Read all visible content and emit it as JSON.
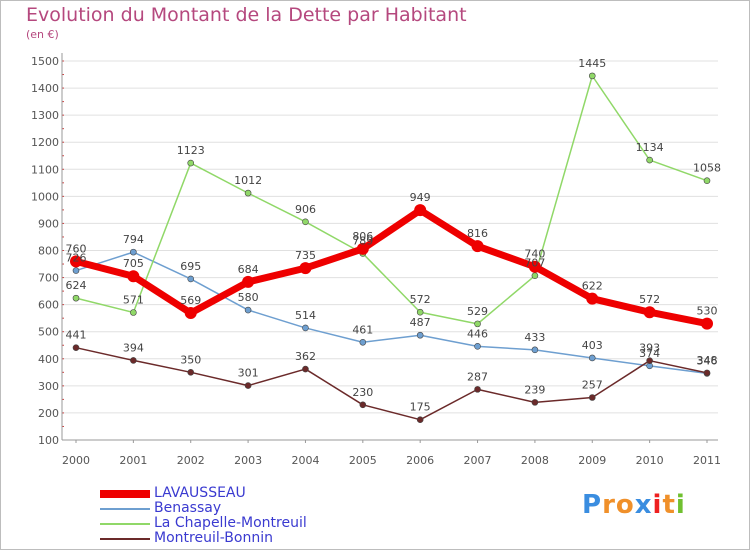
{
  "chart_data": {
    "type": "line",
    "title": "Evolution du Montant de la Dette par Habitant",
    "subtitle": "(en €)",
    "xlabel": "",
    "ylabel": "",
    "categories": [
      "2000",
      "2001",
      "2002",
      "2003",
      "2004",
      "2005",
      "2006",
      "2007",
      "2008",
      "2009",
      "2010",
      "2011"
    ],
    "ylim": [
      100,
      1500
    ],
    "yticks": [
      "100",
      "200",
      "300",
      "400",
      "500",
      "600",
      "700",
      "800",
      "900",
      "1000",
      "1100",
      "1200",
      "1300",
      "1400",
      "1500"
    ],
    "grid": "horizontal",
    "legend_position": "bottom-left",
    "series": [
      {
        "name": "LAVAUSSEAU",
        "color": "#ee0000",
        "values": [
          760,
          705,
          569,
          684,
          735,
          806,
          949,
          816,
          740,
          622,
          572,
          530
        ],
        "labels": [
          "760",
          "705",
          "569",
          "684",
          "735",
          "806",
          "949",
          "816",
          "740",
          "622",
          "572",
          "530"
        ]
      },
      {
        "name": "Benassay",
        "color": "#6e9fd0",
        "values": [
          726,
          794,
          695,
          580,
          514,
          461,
          487,
          446,
          433,
          403,
          374,
          346
        ],
        "labels": [
          "726",
          "794",
          "695",
          "580",
          "514",
          "461",
          "487",
          "446",
          "433",
          "403",
          "374",
          "346"
        ]
      },
      {
        "name": "La Chapelle-Montreuil",
        "color": "#90d868",
        "values": [
          624,
          571,
          1123,
          1012,
          906,
          789,
          572,
          529,
          707,
          1445,
          1134,
          1058
        ],
        "labels": [
          "624",
          "571",
          "1123",
          "1012",
          "906",
          "789",
          "572",
          "529",
          "707",
          "1445",
          "1134",
          "1058"
        ]
      },
      {
        "name": "Montreuil-Bonnin",
        "color": "#6b2a2a",
        "values": [
          441,
          394,
          350,
          301,
          362,
          230,
          175,
          287,
          239,
          257,
          393,
          348
        ],
        "labels": [
          "441",
          "394",
          "350",
          "301",
          "362",
          "230",
          "175",
          "287",
          "239",
          "257",
          "393",
          "348"
        ]
      }
    ]
  },
  "logo": {
    "letters": [
      "P",
      "r",
      "o",
      "x",
      "i",
      "t",
      "i"
    ],
    "colors": [
      "#3a8de0",
      "#f0902a",
      "#f0902a",
      "#3a8de0",
      "#ee2020",
      "#f0902a",
      "#70c030"
    ]
  }
}
